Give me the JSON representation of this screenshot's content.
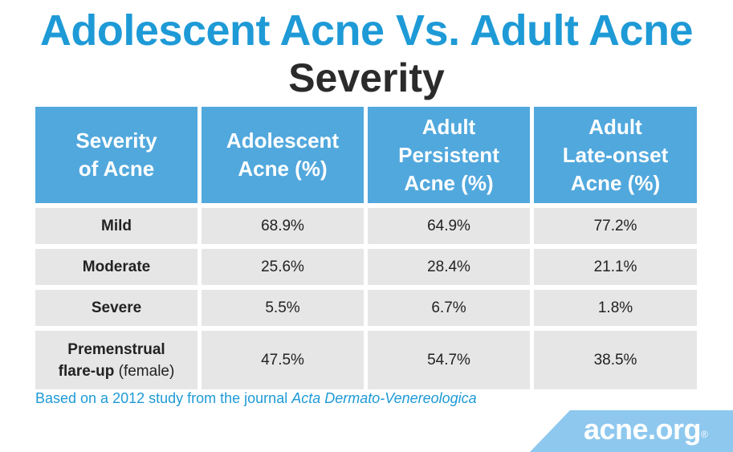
{
  "title": {
    "line1": "Adolescent Acne Vs. Adult Acne",
    "line2": "Severity"
  },
  "chart_data": {
    "type": "table",
    "title": "Adolescent Acne Vs. Adult Acne Severity",
    "columns": [
      [
        "Severity",
        "of Acne"
      ],
      [
        "Adolescent",
        "Acne (%)"
      ],
      [
        "Adult",
        "Persistent",
        "Acne (%)"
      ],
      [
        "Adult",
        "Late-onset",
        "Acne (%)"
      ]
    ],
    "rows": [
      {
        "label": "Mild",
        "values": [
          "68.9%",
          "64.9%",
          "77.2%"
        ]
      },
      {
        "label": "Moderate",
        "values": [
          "25.6%",
          "28.4%",
          "21.1%"
        ]
      },
      {
        "label": "Severe",
        "values": [
          "5.5%",
          "6.7%",
          "1.8%"
        ]
      },
      {
        "label_line1": "Premenstrual",
        "label_line2": "flare-up",
        "label_qualifier": " (female)",
        "values": [
          "47.5%",
          "54.7%",
          "38.5%"
        ]
      }
    ]
  },
  "footnote": {
    "prefix": "Based on a 2012 study from the journal ",
    "journal": "Acta Dermato-Venereologica"
  },
  "logo": {
    "text": "acne.org",
    "mark": "®"
  }
}
